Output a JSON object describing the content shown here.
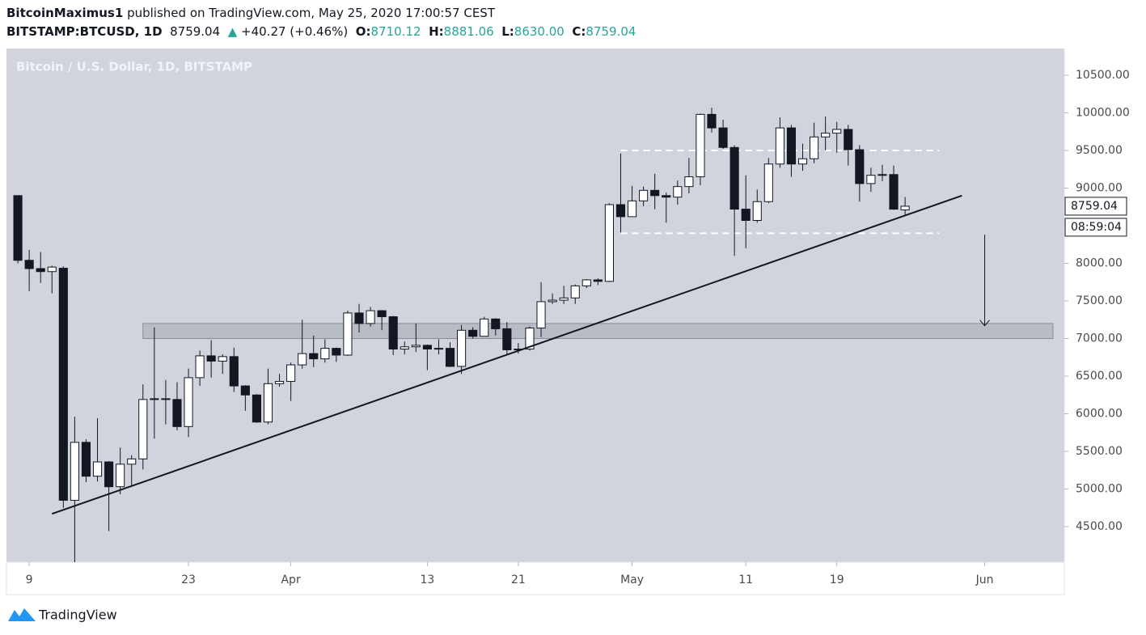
{
  "header": {
    "author": "BitcoinMaximus1",
    "published": "published on TradingView.com, May 25, 2020 17:00:57 CEST",
    "symbol": "BITSTAMP:BTCUSD, 1D",
    "last": "8759.04",
    "arrow": "▲",
    "change": "+40.27 (+0.46%)",
    "o_label": "O:",
    "open": "8710.12",
    "h_label": "H:",
    "high": "8881.06",
    "l_label": "L:",
    "low": "8630.00",
    "c_label": "C:",
    "close": "8759.04"
  },
  "chart_data": {
    "type": "candlestick",
    "title": "Bitcoin / U.S. Dollar, 1D, BITSTAMP",
    "x": [
      "2020-03-08",
      "2020-03-09",
      "2020-03-10",
      "2020-03-11",
      "2020-03-12",
      "2020-03-13",
      "2020-03-14",
      "2020-03-15",
      "2020-03-16",
      "2020-03-17",
      "2020-03-18",
      "2020-03-19",
      "2020-03-20",
      "2020-03-21",
      "2020-03-22",
      "2020-03-23",
      "2020-03-24",
      "2020-03-25",
      "2020-03-26",
      "2020-03-27",
      "2020-03-28",
      "2020-03-29",
      "2020-03-30",
      "2020-03-31",
      "2020-04-01",
      "2020-04-02",
      "2020-04-03",
      "2020-04-04",
      "2020-04-05",
      "2020-04-06",
      "2020-04-07",
      "2020-04-08",
      "2020-04-09",
      "2020-04-10",
      "2020-04-11",
      "2020-04-12",
      "2020-04-13",
      "2020-04-14",
      "2020-04-15",
      "2020-04-16",
      "2020-04-17",
      "2020-04-18",
      "2020-04-19",
      "2020-04-20",
      "2020-04-21",
      "2020-04-22",
      "2020-04-23",
      "2020-04-24",
      "2020-04-25",
      "2020-04-26",
      "2020-04-27",
      "2020-04-28",
      "2020-04-29",
      "2020-04-30",
      "2020-05-01",
      "2020-05-02",
      "2020-05-03",
      "2020-05-04",
      "2020-05-05",
      "2020-05-06",
      "2020-05-07",
      "2020-05-08",
      "2020-05-09",
      "2020-05-10",
      "2020-05-11",
      "2020-05-12",
      "2020-05-13",
      "2020-05-14",
      "2020-05-15",
      "2020-05-16",
      "2020-05-17",
      "2020-05-18",
      "2020-05-19",
      "2020-05-20",
      "2020-05-21",
      "2020-05-22",
      "2020-05-23",
      "2020-05-24",
      "2020-05-25"
    ],
    "open": [
      8900,
      8040,
      7930,
      7890,
      7935,
      4850,
      5620,
      5170,
      5360,
      5030,
      5330,
      5400,
      6190,
      6200,
      6190,
      5830,
      6480,
      6770,
      6700,
      6760,
      6370,
      6250,
      5890,
      6400,
      6430,
      6650,
      6800,
      6730,
      6870,
      6780,
      7340,
      7200,
      7370,
      7290,
      6860,
      6890,
      6910,
      6860,
      6870,
      6630,
      7110,
      7030,
      7260,
      7130,
      6850,
      6860,
      7140,
      7490,
      7510,
      7540,
      7700,
      7780,
      7760,
      8780,
      8620,
      8830,
      8970,
      8900,
      8880,
      9020,
      9150,
      9980,
      9800,
      9540,
      8720,
      8570,
      8820,
      9320,
      9800,
      9320,
      9390,
      9680,
      9730,
      9780,
      9510,
      9060,
      9170,
      9180,
      8710.12
    ],
    "high": [
      8900,
      8180,
      8150,
      7970,
      7960,
      5960,
      5660,
      5940,
      5370,
      5550,
      5450,
      6390,
      7150,
      6450,
      6420,
      6600,
      6840,
      6980,
      6790,
      6880,
      6380,
      6260,
      6600,
      6530,
      6680,
      7250,
      7040,
      6990,
      6880,
      7370,
      7460,
      7420,
      7380,
      7300,
      6960,
      7200,
      6920,
      6990,
      6950,
      7180,
      7150,
      7290,
      7270,
      7220,
      6940,
      7160,
      7750,
      7600,
      7700,
      7720,
      7790,
      7800,
      8800,
      9460,
      9030,
      9020,
      9190,
      8940,
      9100,
      9400,
      9990,
      10070,
      9910,
      9570,
      9170,
      8980,
      9400,
      9940,
      9840,
      9590,
      9870,
      9950,
      9880,
      9840,
      9570,
      9270,
      9310,
      9300,
      8881.06
    ],
    "low": [
      8000,
      7630,
      7740,
      7600,
      4750,
      3850,
      5090,
      5100,
      4440,
      4930,
      5050,
      5260,
      5670,
      5860,
      5780,
      5690,
      6370,
      6480,
      6530,
      6290,
      6040,
      5880,
      5860,
      6360,
      6170,
      6600,
      6620,
      6680,
      6690,
      6770,
      7080,
      7160,
      7110,
      6780,
      6790,
      6820,
      6580,
      6790,
      6620,
      6530,
      7000,
      7030,
      7040,
      6780,
      6800,
      6840,
      7020,
      7460,
      7460,
      7460,
      7670,
      7710,
      7750,
      8410,
      8620,
      8760,
      8720,
      8540,
      8780,
      8930,
      9040,
      9740,
      9520,
      8100,
      8200,
      8540,
      8800,
      9270,
      9150,
      9230,
      9330,
      9500,
      9470,
      9300,
      8820,
      8950,
      9090,
      8710,
      8630
    ],
    "close": [
      8040,
      7930,
      7890,
      7950,
      4850,
      5620,
      5170,
      5360,
      5030,
      5330,
      5400,
      6190,
      6200,
      6190,
      5830,
      6480,
      6770,
      6700,
      6760,
      6370,
      6250,
      5890,
      6400,
      6430,
      6650,
      6800,
      6730,
      6870,
      6780,
      7340,
      7200,
      7370,
      7290,
      6860,
      6890,
      6910,
      6860,
      6870,
      6630,
      7110,
      7030,
      7260,
      7130,
      6850,
      6860,
      7140,
      7490,
      7510,
      7540,
      7700,
      7780,
      7760,
      8780,
      8620,
      8830,
      8970,
      8900,
      8880,
      9020,
      9150,
      9980,
      9800,
      9540,
      8720,
      8570,
      8820,
      9320,
      9800,
      9320,
      9390,
      9680,
      9730,
      9780,
      9510,
      9060,
      9170,
      9180,
      8720,
      8759.04
    ],
    "up_color": "#ffffff",
    "down_color": "#131722",
    "wick_color": "#131722",
    "xlim": [
      "2020-03-07",
      "2020-06-08"
    ],
    "xticks": [
      {
        "value": "2020-03-09",
        "label": "9"
      },
      {
        "value": "2020-03-23",
        "label": "23"
      },
      {
        "value": "2020-04-01",
        "label": "Apr"
      },
      {
        "value": "2020-04-13",
        "label": "13"
      },
      {
        "value": "2020-04-21",
        "label": "21"
      },
      {
        "value": "2020-05-01",
        "label": "May"
      },
      {
        "value": "2020-05-11",
        "label": "11"
      },
      {
        "value": "2020-05-19",
        "label": "19"
      },
      {
        "value": "2020-06-01",
        "label": "Jun"
      }
    ],
    "ylim": [
      4027,
      10855
    ],
    "yticks": [
      {
        "value": 4500,
        "label": "4500.00"
      },
      {
        "value": 5000,
        "label": "5000.00"
      },
      {
        "value": 5500,
        "label": "5500.00"
      },
      {
        "value": 6000,
        "label": "6000.00"
      },
      {
        "value": 6500,
        "label": "6500.00"
      },
      {
        "value": 7000,
        "label": "7000.00"
      },
      {
        "value": 7500,
        "label": "7500.00"
      },
      {
        "value": 8000,
        "label": "8000.00"
      },
      {
        "value": 8500,
        "label": "8500.00"
      },
      {
        "value": 9000,
        "label": "9000.00"
      },
      {
        "value": 9500,
        "label": "9500.00"
      },
      {
        "value": 10000,
        "label": "10000.00"
      },
      {
        "value": 10500,
        "label": "10500.00"
      }
    ],
    "last_label": "8759.04",
    "countdown": "08:59:04",
    "trendline": {
      "x": [
        "2020-03-11",
        "2020-05-30"
      ],
      "y": [
        4670,
        8900
      ]
    },
    "zone": {
      "x": [
        "2020-03-19",
        "2020-06-07"
      ],
      "y": [
        7000,
        7200
      ]
    },
    "levels": {
      "x": [
        "2020-04-30",
        "2020-05-28"
      ],
      "y": [
        9500,
        8400
      ]
    },
    "arrow": {
      "x": "2020-06-01",
      "y": [
        8380,
        7170
      ]
    }
  },
  "footer": {
    "brand": "TradingView"
  }
}
